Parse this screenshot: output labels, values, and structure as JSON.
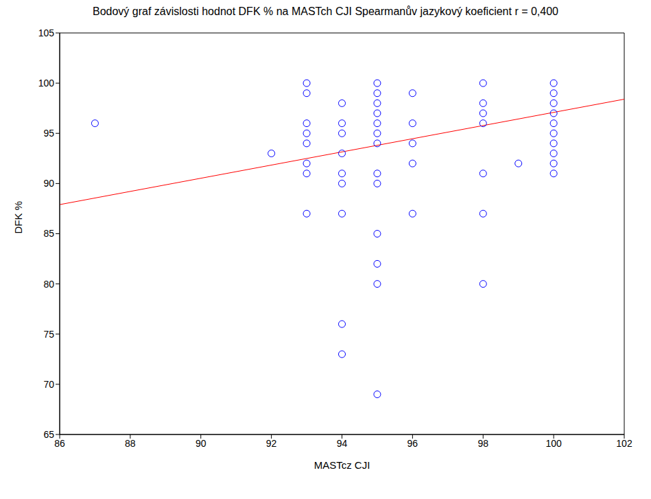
{
  "chart_data": {
    "type": "scatter",
    "title": "Bodový graf závislosti hodnot DFK % na MASTch CJI Spearmanův jazykový koeficient r = 0,400",
    "x_label": "MASTcz CJI",
    "y_label": "DFK %",
    "x": [
      87,
      92,
      93,
      93,
      93,
      93,
      93,
      93,
      93,
      93,
      94,
      94,
      94,
      94,
      94,
      94,
      94,
      94,
      94,
      95,
      95,
      95,
      95,
      95,
      95,
      95,
      95,
      95,
      95,
      95,
      95,
      95,
      96,
      96,
      96,
      96,
      96,
      98,
      98,
      98,
      98,
      98,
      98,
      98,
      99,
      100,
      100,
      100,
      100,
      100,
      100,
      100,
      100,
      100,
      100
    ],
    "values": [
      96,
      93,
      100,
      99,
      96,
      95,
      94,
      92,
      91,
      87,
      98,
      96,
      95,
      93,
      91,
      90,
      87,
      76,
      73,
      100,
      99,
      98,
      97,
      96,
      95,
      94,
      91,
      90,
      85,
      82,
      80,
      69,
      99,
      96,
      94,
      92,
      87,
      100,
      98,
      97,
      96,
      91,
      87,
      80,
      92,
      100,
      99,
      98,
      97,
      96,
      95,
      94,
      93,
      92,
      91
    ],
    "color": "#0000ff",
    "marker": "open_circle",
    "xlim": [
      86,
      102
    ],
    "xticks": [
      86,
      88,
      90,
      92,
      94,
      96,
      98,
      100,
      102
    ],
    "ylim": [
      65,
      105
    ],
    "yticks": [
      65,
      70,
      75,
      80,
      85,
      90,
      95,
      100,
      105
    ],
    "grid": false,
    "trend_line": {
      "x": [
        86,
        102
      ],
      "values": [
        87.9,
        98.4
      ],
      "color": "#ff0000"
    }
  }
}
